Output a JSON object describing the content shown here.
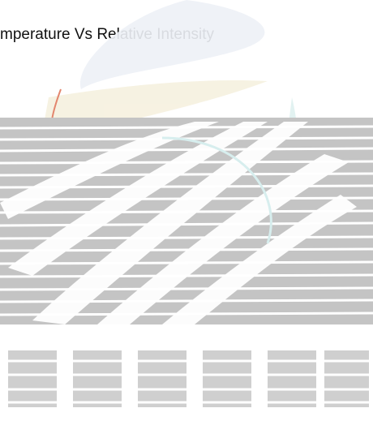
{
  "title": "mperature Vs Relative Intensity",
  "artwork": {
    "description_icon": "faded-sunburst-logo-graphic",
    "colors": {
      "stripe_gray": "#bdbdbd",
      "stripe_light": "#d9d9d9",
      "swoosh_blue": "#e7ecf4",
      "swoosh_yellow": "#fbf6e3",
      "swoosh_teal": "#d7eeee",
      "accent_red": "#e07a5f"
    }
  }
}
